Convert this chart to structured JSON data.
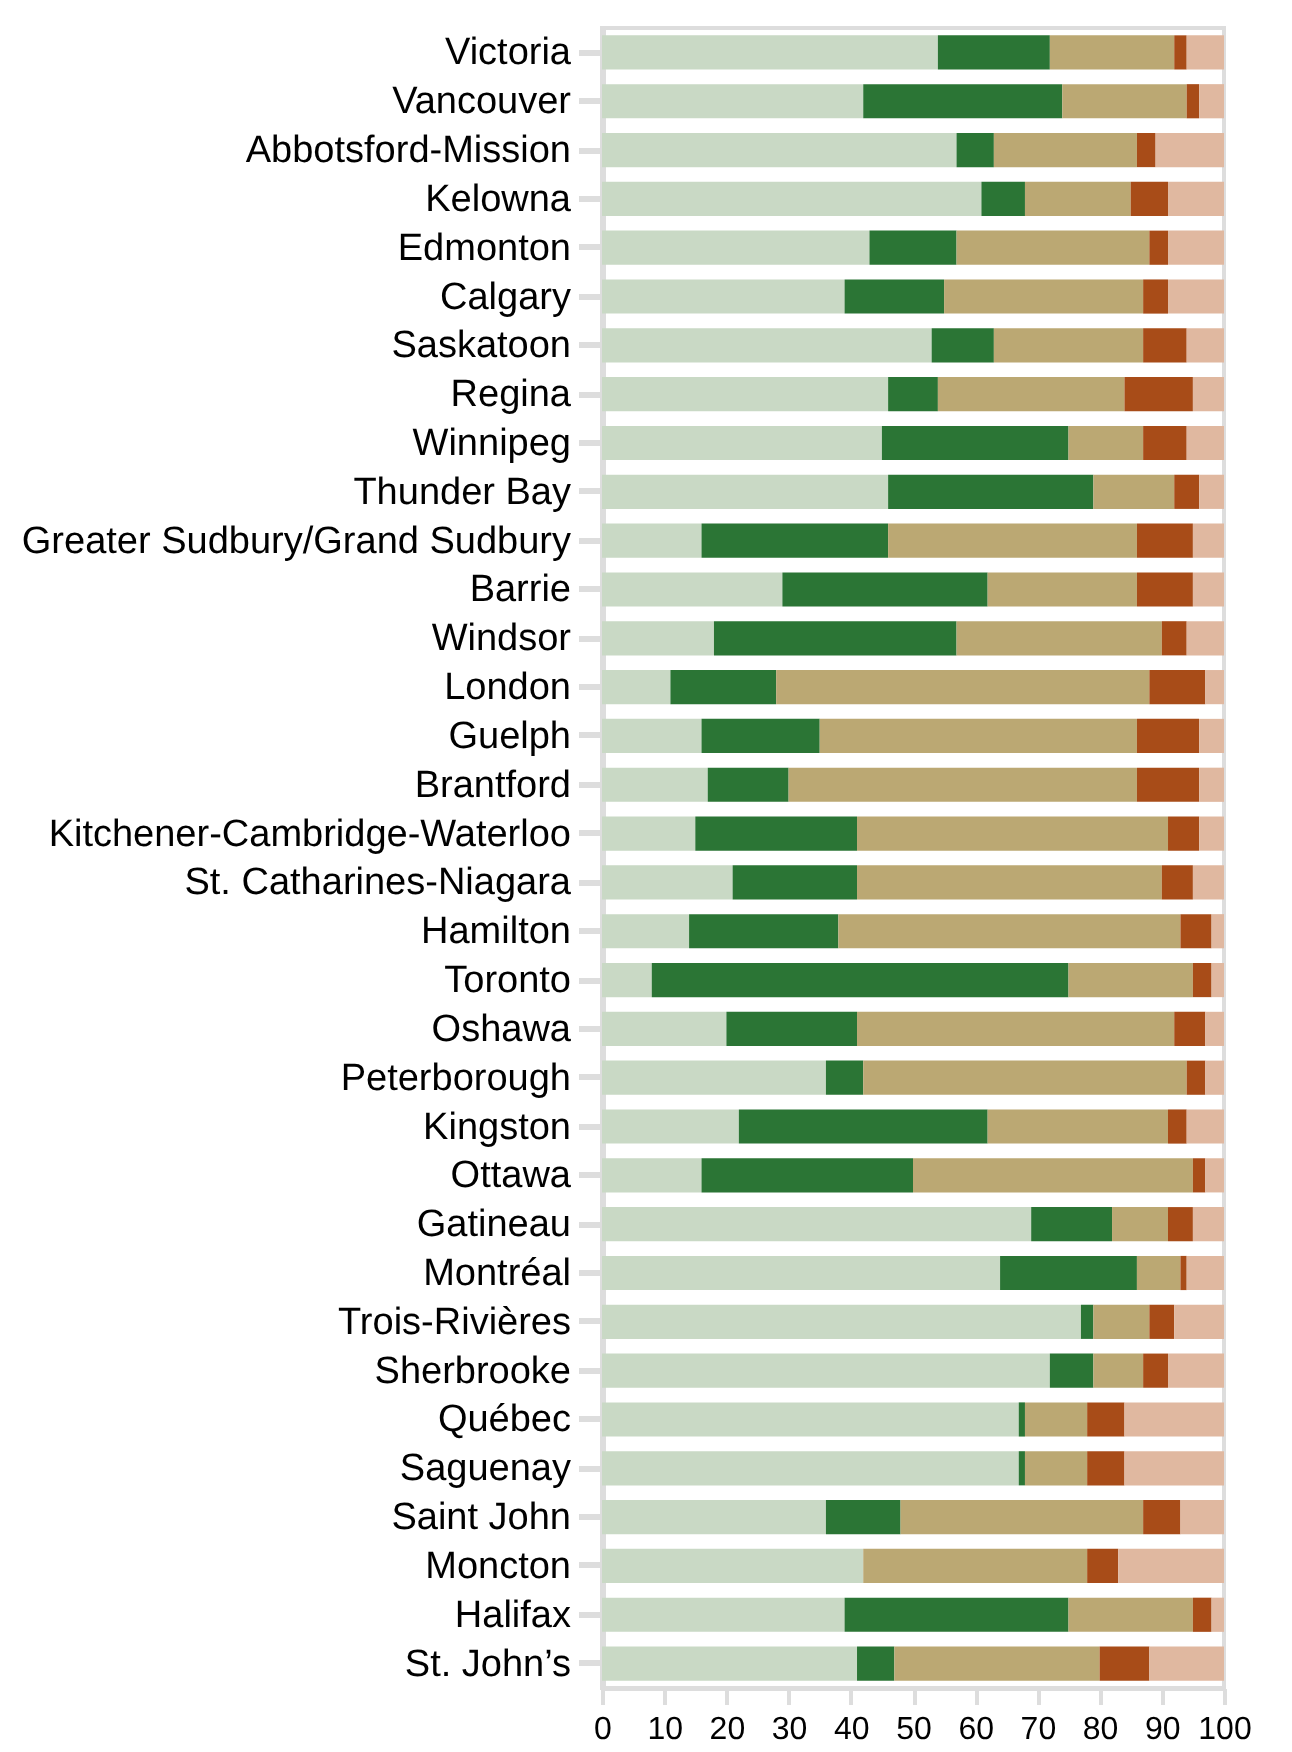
{
  "chart_data": {
    "type": "bar",
    "orientation": "horizontal",
    "stacked": true,
    "categories": [
      "Victoria",
      "Vancouver",
      "Abbotsford-Mission",
      "Kelowna",
      "Edmonton",
      "Calgary",
      "Saskatoon",
      "Regina",
      "Winnipeg",
      "Thunder Bay",
      "Greater Sudbury/Grand Sudbury",
      "Barrie",
      "Windsor",
      "London",
      "Guelph",
      "Brantford",
      "Kitchener-Cambridge-Waterloo",
      "St. Catharines-Niagara",
      "Hamilton",
      "Toronto",
      "Oshawa",
      "Peterborough",
      "Kingston",
      "Ottawa",
      "Gatineau",
      "Montréal ",
      "Trois-Rivières",
      "Sherbrooke ",
      "Québec",
      "Saguenay",
      "Saint John",
      "Moncton",
      "Halifax",
      "St. John’s"
    ],
    "series": [
      {
        "color": "#c9d9c5",
        "values": [
          54,
          42,
          57,
          61,
          43,
          39,
          53,
          46,
          45,
          46,
          16,
          29,
          18,
          11,
          16,
          17,
          15,
          21,
          14,
          8,
          20,
          36,
          22,
          16,
          69,
          64,
          77,
          72,
          67,
          67,
          36,
          42,
          39,
          41
        ]
      },
      {
        "color": "#2b7535",
        "values": [
          18,
          32,
          6,
          7,
          14,
          16,
          10,
          8,
          30,
          33,
          30,
          33,
          39,
          17,
          19,
          13,
          26,
          20,
          24,
          67,
          21,
          6,
          40,
          34,
          13,
          22,
          2,
          7,
          1,
          1,
          12,
          0,
          36,
          6
        ]
      },
      {
        "color": "#bba873",
        "values": [
          20,
          20,
          23,
          17,
          31,
          32,
          24,
          30,
          12,
          13,
          40,
          24,
          33,
          60,
          51,
          56,
          50,
          49,
          55,
          20,
          51,
          52,
          29,
          45,
          9,
          7,
          9,
          8,
          10,
          10,
          39,
          36,
          20,
          33
        ]
      },
      {
        "color": "#a84c18",
        "values": [
          2,
          2,
          3,
          6,
          3,
          4,
          7,
          11,
          7,
          4,
          9,
          9,
          4,
          9,
          10,
          10,
          5,
          5,
          5,
          3,
          5,
          3,
          3,
          2,
          4,
          1,
          4,
          4,
          6,
          6,
          6,
          5,
          3,
          8
        ]
      },
      {
        "color": "#e0b8a0",
        "values": [
          6,
          4,
          11,
          9,
          9,
          9,
          6,
          5,
          6,
          4,
          5,
          5,
          6,
          3,
          4,
          4,
          4,
          5,
          2,
          2,
          3,
          3,
          6,
          3,
          5,
          6,
          8,
          9,
          16,
          16,
          7,
          17,
          2,
          12
        ]
      }
    ],
    "xlim": [
      0,
      100
    ],
    "xticks": [
      0,
      10,
      20,
      30,
      40,
      50,
      60,
      70,
      80,
      90,
      100
    ],
    "grid": false,
    "legend": false
  }
}
